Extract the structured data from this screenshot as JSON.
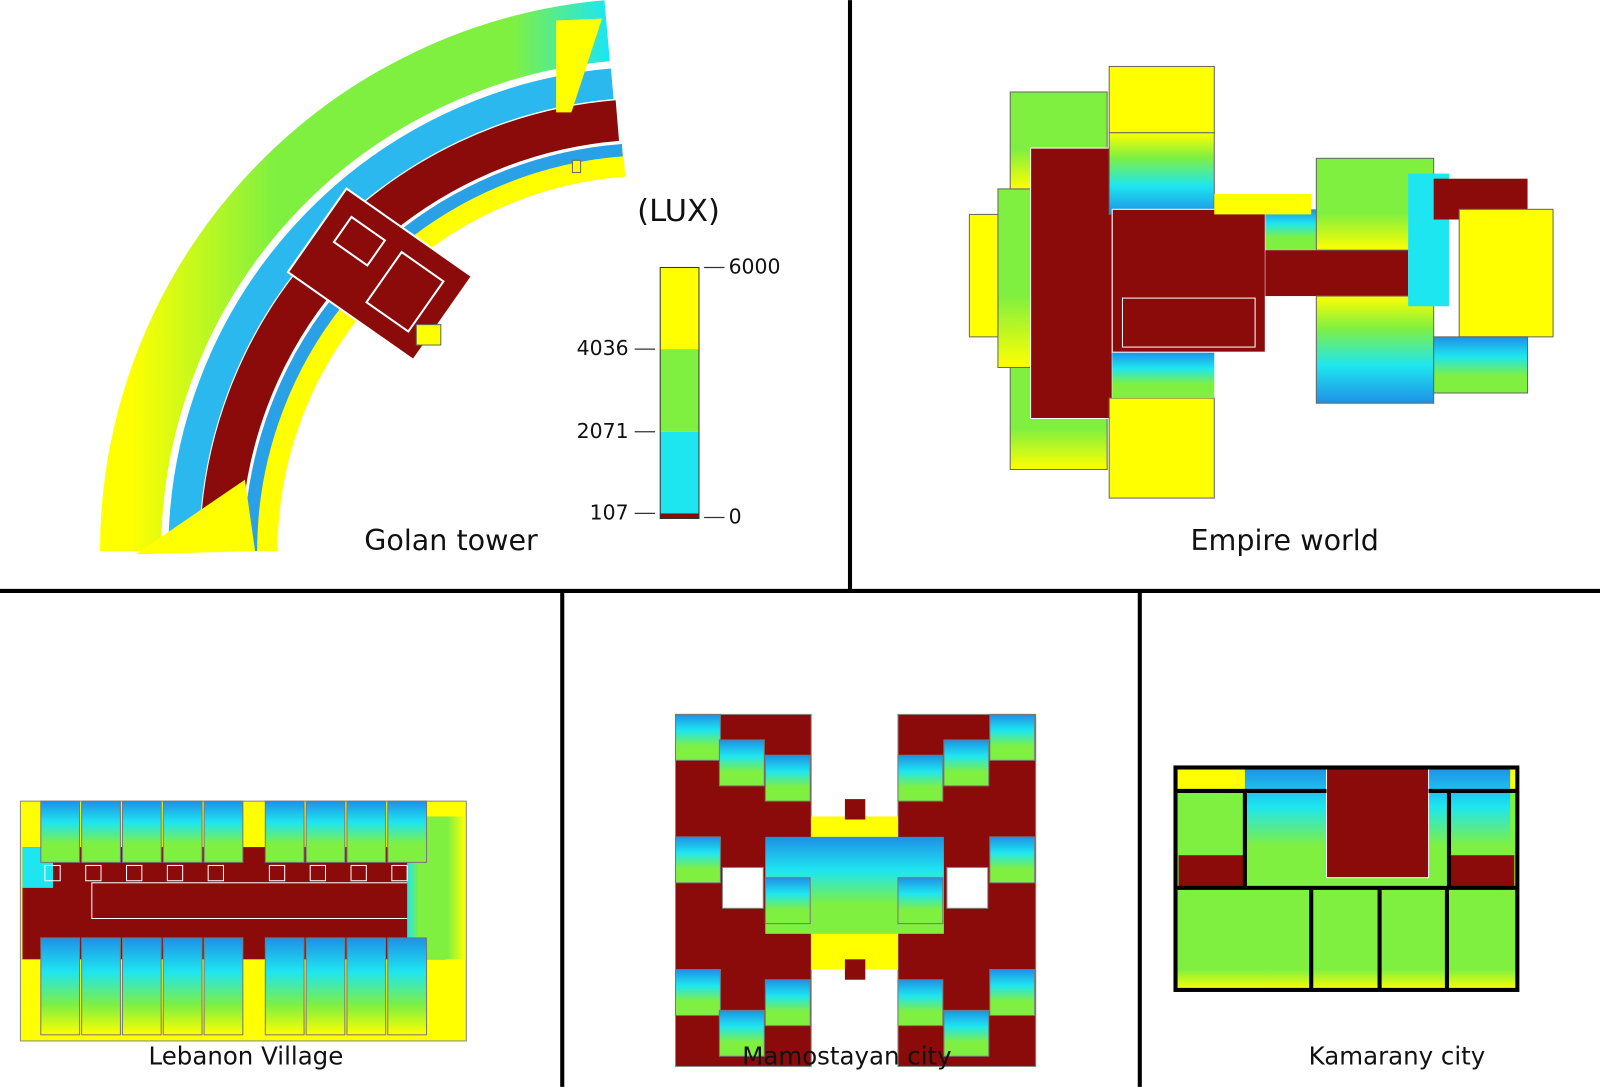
{
  "panels": [
    {
      "label": "Golan tower"
    },
    {
      "label": "Empire world"
    },
    {
      "label": "Lebanon Village"
    },
    {
      "label": "Mamostayan city"
    },
    {
      "label": "Kamarany city"
    }
  ],
  "legend": {
    "title": "(LUX)",
    "ticks": [
      6000,
      4036,
      2071,
      107,
      0
    ]
  }
}
